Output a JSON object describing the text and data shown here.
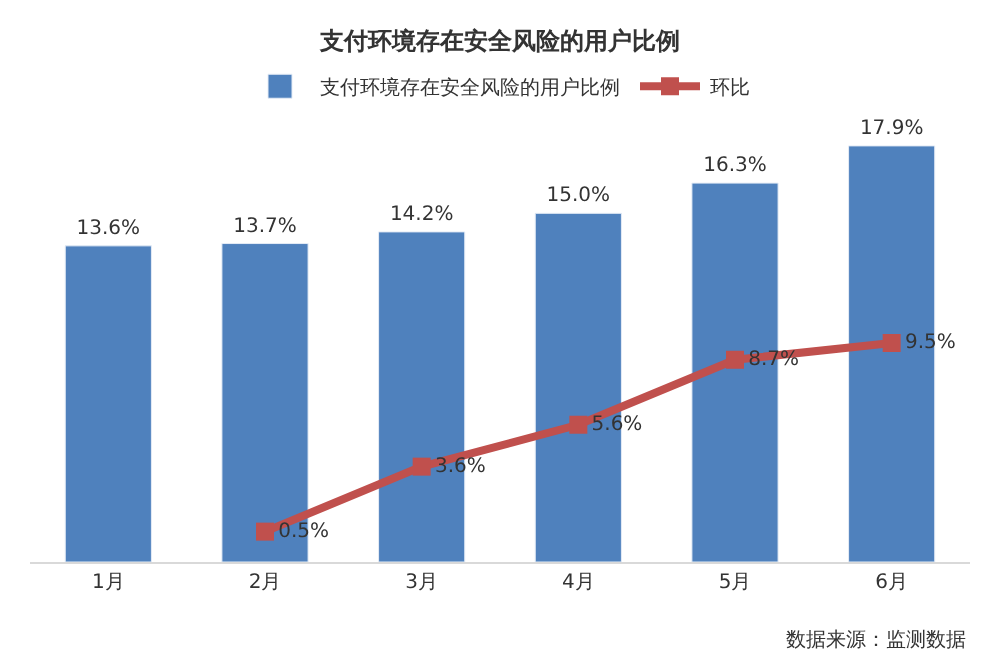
{
  "chart_data": {
    "type": "bar",
    "title": "支付环境存在安全风险的用户比例",
    "categories": [
      "1月",
      "2月",
      "3月",
      "4月",
      "5月",
      "6月"
    ],
    "series": [
      {
        "name": "支付环境存在安全风险的用户比例",
        "color": "#4f81bd",
        "values": [
          13.6,
          13.7,
          14.2,
          15.0,
          16.3,
          17.9
        ],
        "value_labels": [
          "13.6%",
          "13.7%",
          "14.2%",
          "15.0%",
          "16.3%",
          "17.9%"
        ]
      },
      {
        "name": "环比",
        "type": "line",
        "axis": "y2",
        "color": "#c0504d",
        "marker": "square",
        "values": [
          null,
          0.5,
          3.6,
          5.6,
          8.7,
          9.5
        ],
        "value_labels": [
          null,
          "0.5%",
          "3.6%",
          "5.6%",
          "8.7%",
          "9.5%"
        ]
      }
    ],
    "tick_labels": "x",
    "legend": "top",
    "annotations": [
      "数据来源：监测数据"
    ]
  }
}
